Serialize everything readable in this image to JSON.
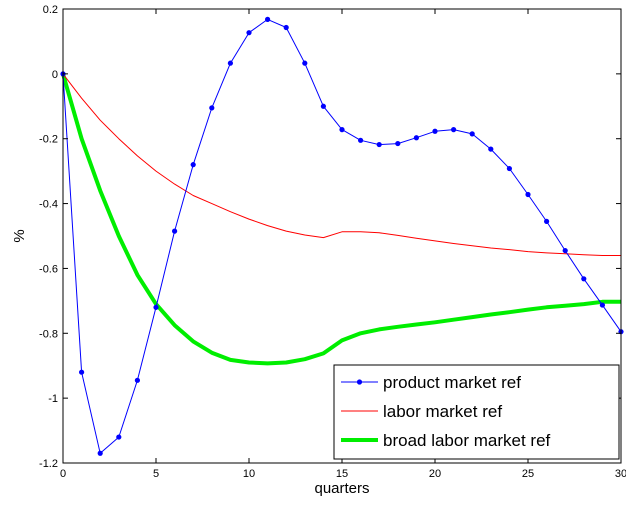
{
  "chart_data": {
    "type": "line",
    "xlabel": "quarters",
    "ylabel": "%",
    "xlim": [
      0,
      30
    ],
    "ylim": [
      -1.2,
      0.2
    ],
    "xticks": [
      0,
      5,
      10,
      15,
      20,
      25,
      30
    ],
    "yticks": [
      0.2,
      0,
      -0.2,
      -0.4,
      -0.6,
      -0.8,
      -1,
      -1.2
    ],
    "ytick_labels": [
      "0.2",
      "0",
      "-0.2",
      "-0.4",
      "-0.6",
      "-0.8",
      "-1",
      "-1.2"
    ],
    "grid": false,
    "legend_position": "bottom-right",
    "x": [
      0,
      1,
      2,
      3,
      4,
      5,
      6,
      7,
      8,
      9,
      10,
      11,
      12,
      13,
      14,
      15,
      16,
      17,
      18,
      19,
      20,
      21,
      22,
      23,
      24,
      25,
      26,
      27,
      28,
      29,
      30
    ],
    "series": [
      {
        "name": "product market ref",
        "color": "#0000ff",
        "style": "line-dot",
        "values": [
          0,
          -0.92,
          -1.17,
          -1.12,
          -0.945,
          -0.72,
          -0.485,
          -0.28,
          -0.105,
          0.033,
          0.127,
          0.168,
          0.143,
          0.033,
          -0.1,
          -0.172,
          -0.205,
          -0.218,
          -0.215,
          -0.197,
          -0.177,
          -0.172,
          -0.185,
          -0.232,
          -0.292,
          -0.372,
          -0.455,
          -0.545,
          -0.632,
          -0.713,
          -0.795
        ]
      },
      {
        "name": "labor market ref",
        "color": "#ff0000",
        "style": "line",
        "values": [
          0,
          -0.075,
          -0.143,
          -0.2,
          -0.253,
          -0.3,
          -0.34,
          -0.375,
          -0.4,
          -0.425,
          -0.448,
          -0.468,
          -0.485,
          -0.497,
          -0.505,
          -0.487,
          -0.487,
          -0.49,
          -0.498,
          -0.507,
          -0.515,
          -0.523,
          -0.53,
          -0.537,
          -0.542,
          -0.548,
          -0.552,
          -0.555,
          -0.558,
          -0.56,
          -0.56
        ]
      },
      {
        "name": "broad labor market ref",
        "color": "#00ee00",
        "style": "thick-line",
        "values": [
          0,
          -0.2,
          -0.36,
          -0.5,
          -0.62,
          -0.71,
          -0.775,
          -0.825,
          -0.86,
          -0.882,
          -0.89,
          -0.893,
          -0.89,
          -0.88,
          -0.862,
          -0.822,
          -0.8,
          -0.788,
          -0.78,
          -0.773,
          -0.766,
          -0.758,
          -0.75,
          -0.742,
          -0.735,
          -0.727,
          -0.72,
          -0.715,
          -0.71,
          -0.703,
          -0.703
        ]
      }
    ]
  }
}
